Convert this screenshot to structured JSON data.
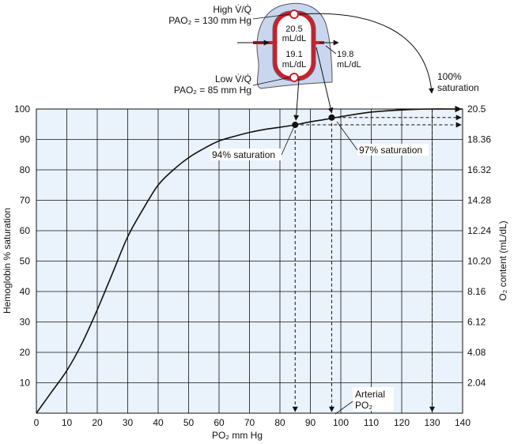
{
  "chart_data": {
    "type": "line",
    "xlabel": "PO₂ mm Hg",
    "ylabel": "Hemoglobin % saturation",
    "y2label": "O₂ content (mL/dL)",
    "xlim": [
      0,
      140
    ],
    "ylim": [
      0,
      100
    ],
    "grid": true,
    "x_ticks": [
      "0",
      "10",
      "20",
      "30",
      "40",
      "50",
      "60",
      "70",
      "80",
      "90",
      "100",
      "110",
      "120",
      "130",
      "140"
    ],
    "y_ticks": [
      "10",
      "20",
      "30",
      "40",
      "50",
      "60",
      "70",
      "80",
      "90",
      "100"
    ],
    "y2_ticks": [
      "2.04",
      "4.08",
      "6.12",
      "8.16",
      "10.20",
      "12.24",
      "14.28",
      "16.32",
      "18.36",
      "20.5"
    ],
    "series": [
      {
        "x": [
          0,
          5,
          10,
          15,
          20,
          25,
          30,
          35,
          40,
          45,
          50,
          55,
          60,
          65,
          70,
          75,
          80,
          85,
          90,
          95,
          100,
          105,
          110,
          115,
          120,
          125,
          130,
          135,
          140
        ],
        "values": [
          0,
          7,
          14,
          23,
          34,
          46,
          58,
          67,
          75,
          80,
          84,
          87,
          89.5,
          91,
          92.3,
          93.3,
          94,
          94.8,
          95.8,
          96.6,
          97.5,
          98.3,
          99,
          99.4,
          99.7,
          99.9,
          100,
          100,
          100
        ]
      }
    ],
    "points": [
      {
        "x": 85,
        "y": 94.8
      },
      {
        "x": 97,
        "y": 97.2
      }
    ],
    "annotations": {
      "sat94": "94% saturation",
      "sat97": "97% saturation",
      "sat100_line1": "100%",
      "sat100_line2": "saturation",
      "arterial_line1": "Arterial",
      "arterial_line2": "PO₂",
      "high_vq": "High V̇/Q̇",
      "high_pao2": "PAO₂ = 130 mm Hg",
      "low_vq": "Low V̇/Q̇",
      "low_pao2": "PAO₂ = 85 mm Hg",
      "content_high_value": "20.5",
      "content_low_value": "19.1",
      "content_mixed_value": "19.8",
      "content_unit": "mL/dL"
    },
    "colors": {
      "grid_fill": "#eaf2fb",
      "lung_fill": "#c9d6ee",
      "capillary": "#c8202c"
    }
  }
}
